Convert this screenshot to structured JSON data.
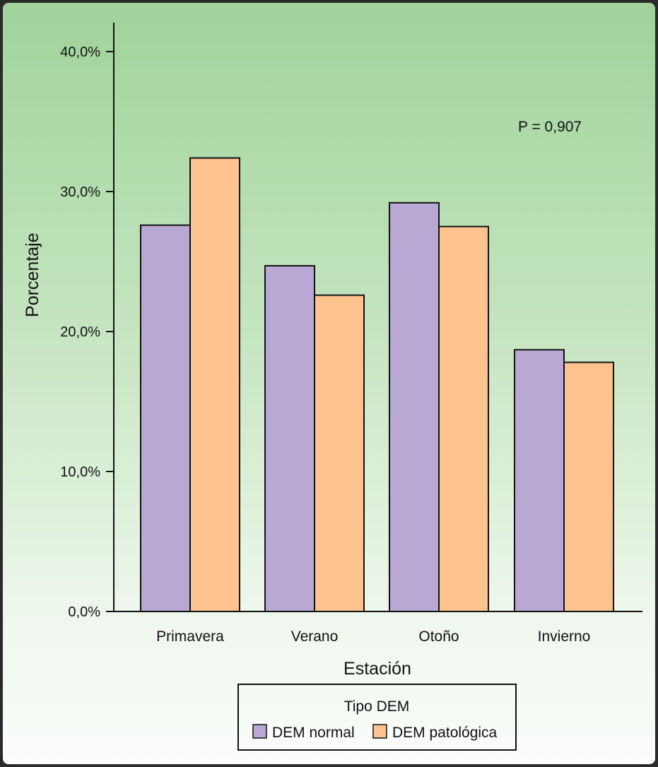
{
  "chart_data": {
    "type": "bar",
    "categories": [
      "Primavera",
      "Verano",
      "Otoño",
      "Invierno"
    ],
    "series": [
      {
        "name": "DEM normal",
        "values": [
          27.6,
          24.7,
          29.2,
          18.7
        ],
        "color": "#b9a8d4"
      },
      {
        "name": "DEM patológica",
        "values": [
          32.4,
          22.6,
          27.5,
          17.8
        ],
        "color": "#fdc38f"
      }
    ],
    "xlabel": "Estación",
    "ylabel": "Porcentaje",
    "ylim": [
      0,
      40
    ],
    "yticks": [
      "0,0%",
      "10,0%",
      "20,0%",
      "30,0%",
      "40,0%"
    ],
    "annotation": "P = 0,907",
    "legend": {
      "title": "Tipo DEM",
      "position": "bottom"
    },
    "grid": false
  }
}
